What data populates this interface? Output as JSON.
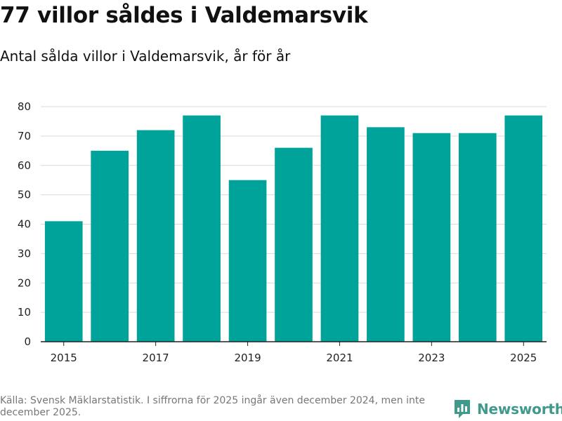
{
  "title": "77 villor såldes i Valdemarsvik",
  "subtitle": "Antal sålda villor i Valdemarsvik, år för år",
  "source": "Källa: Svensk Mäklarstatistik. I siffrorna för 2025 ingår även december 2024, men inte december 2025.",
  "brand": {
    "name": "Newsworthy",
    "icon": "newsworthy-logo-icon"
  },
  "colors": {
    "bar": "#00a39a",
    "grid": "#d9d9d9",
    "axis": "#222222",
    "brand": "#3f9a8c"
  },
  "chart_data": {
    "type": "bar",
    "title": "77 villor såldes i Valdemarsvik",
    "subtitle": "Antal sålda villor i Valdemarsvik, år för år",
    "xlabel": "",
    "ylabel": "",
    "categories": [
      "2015",
      "2016",
      "2017",
      "2018",
      "2019",
      "2020",
      "2021",
      "2022",
      "2023",
      "2024",
      "2025"
    ],
    "values": [
      41,
      65,
      72,
      77,
      55,
      66,
      77,
      73,
      71,
      71,
      77
    ],
    "ylim": [
      0,
      80
    ],
    "yticks": [
      0,
      10,
      20,
      30,
      40,
      50,
      60,
      70,
      80
    ],
    "xticks": [
      "2015",
      "2017",
      "2019",
      "2021",
      "2023",
      "2025"
    ],
    "grid": true,
    "legend": "none"
  }
}
